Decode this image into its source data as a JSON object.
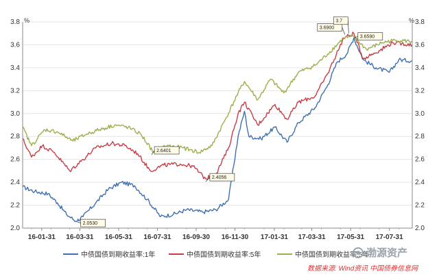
{
  "chart_data": {
    "type": "line",
    "unit_left": "%",
    "unit_right": "%",
    "ylim": [
      2.0,
      3.8
    ],
    "yticks": [
      "2.0",
      "2.2",
      "2.4",
      "2.6",
      "2.8",
      "3.0",
      "3.2",
      "3.4",
      "3.6",
      "3.8"
    ],
    "xticks": [
      "16-01-31",
      "16-03-31",
      "16-05-31",
      "16-07-31",
      "16-09-30",
      "16-11-30",
      "17-01-31",
      "17-03-31",
      "17-05-31",
      "17-07-31"
    ],
    "x_start": "2016-01-01",
    "x_end": "2017-09-05",
    "grid": true,
    "legend_position": "bottom",
    "series": [
      {
        "name": "中债国债到期收益率:1年",
        "color": "#3f6fb0",
        "points": [
          [
            "2016-01-01",
            2.36
          ],
          [
            "2016-01-20",
            2.32
          ],
          [
            "2016-02-10",
            2.3
          ],
          [
            "2016-02-25",
            2.22
          ],
          [
            "2016-03-10",
            2.12
          ],
          [
            "2016-03-25",
            2.06
          ],
          [
            "2016-04-05",
            2.1
          ],
          [
            "2016-04-25",
            2.22
          ],
          [
            "2016-05-15",
            2.34
          ],
          [
            "2016-06-05",
            2.4
          ],
          [
            "2016-06-25",
            2.37
          ],
          [
            "2016-07-15",
            2.25
          ],
          [
            "2016-08-05",
            2.1
          ],
          [
            "2016-08-25",
            2.12
          ],
          [
            "2016-09-15",
            2.16
          ],
          [
            "2016-10-10",
            2.14
          ],
          [
            "2016-10-31",
            2.16
          ],
          [
            "2016-11-20",
            2.25
          ],
          [
            "2016-12-05",
            2.8
          ],
          [
            "2016-12-15",
            3.02
          ],
          [
            "2016-12-22",
            2.8
          ],
          [
            "2017-01-10",
            2.78
          ],
          [
            "2017-02-01",
            2.88
          ],
          [
            "2017-02-20",
            2.75
          ],
          [
            "2017-03-10",
            2.92
          ],
          [
            "2017-04-05",
            3.05
          ],
          [
            "2017-04-25",
            3.25
          ],
          [
            "2017-05-10",
            3.45
          ],
          [
            "2017-05-25",
            3.52
          ],
          [
            "2017-06-05",
            3.66
          ],
          [
            "2017-06-20",
            3.47
          ],
          [
            "2017-07-10",
            3.4
          ],
          [
            "2017-07-31",
            3.36
          ],
          [
            "2017-08-15",
            3.47
          ],
          [
            "2017-09-05",
            3.46
          ]
        ]
      },
      {
        "name": "中债国债到期收益率:5年",
        "color": "#c83c46",
        "points": [
          [
            "2016-01-01",
            2.78
          ],
          [
            "2016-01-15",
            2.62
          ],
          [
            "2016-02-01",
            2.72
          ],
          [
            "2016-02-20",
            2.66
          ],
          [
            "2016-03-15",
            2.5
          ],
          [
            "2016-04-05",
            2.6
          ],
          [
            "2016-04-25",
            2.7
          ],
          [
            "2016-05-20",
            2.74
          ],
          [
            "2016-06-10",
            2.72
          ],
          [
            "2016-06-30",
            2.65
          ],
          [
            "2016-07-20",
            2.5
          ],
          [
            "2016-08-10",
            2.55
          ],
          [
            "2016-09-05",
            2.56
          ],
          [
            "2016-09-25",
            2.54
          ],
          [
            "2016-10-15",
            2.43
          ],
          [
            "2016-11-01",
            2.48
          ],
          [
            "2016-11-20",
            2.7
          ],
          [
            "2016-12-05",
            3.0
          ],
          [
            "2016-12-15",
            3.1
          ],
          [
            "2017-01-05",
            2.9
          ],
          [
            "2017-02-01",
            3.08
          ],
          [
            "2017-02-20",
            2.95
          ],
          [
            "2017-03-10",
            3.1
          ],
          [
            "2017-04-05",
            3.15
          ],
          [
            "2017-04-25",
            3.35
          ],
          [
            "2017-05-20",
            3.66
          ],
          [
            "2017-06-05",
            3.7
          ],
          [
            "2017-06-20",
            3.48
          ],
          [
            "2017-07-15",
            3.55
          ],
          [
            "2017-08-05",
            3.62
          ],
          [
            "2017-09-05",
            3.6
          ]
        ]
      },
      {
        "name": "中债国债到期收益率:5年",
        "color": "#9ab04a",
        "points": [
          [
            "2016-01-01",
            2.88
          ],
          [
            "2016-01-15",
            2.72
          ],
          [
            "2016-02-05",
            2.86
          ],
          [
            "2016-02-25",
            2.84
          ],
          [
            "2016-03-20",
            2.76
          ],
          [
            "2016-04-10",
            2.82
          ],
          [
            "2016-05-01",
            2.86
          ],
          [
            "2016-05-25",
            2.9
          ],
          [
            "2016-06-15",
            2.88
          ],
          [
            "2016-07-05",
            2.82
          ],
          [
            "2016-07-25",
            2.66
          ],
          [
            "2016-08-15",
            2.72
          ],
          [
            "2016-09-10",
            2.7
          ],
          [
            "2016-10-05",
            2.66
          ],
          [
            "2016-10-25",
            2.72
          ],
          [
            "2016-11-15",
            2.95
          ],
          [
            "2016-12-05",
            3.18
          ],
          [
            "2016-12-15",
            3.28
          ],
          [
            "2017-01-05",
            3.12
          ],
          [
            "2017-01-25",
            3.3
          ],
          [
            "2017-02-15",
            3.18
          ],
          [
            "2017-03-10",
            3.36
          ],
          [
            "2017-04-05",
            3.42
          ],
          [
            "2017-04-25",
            3.52
          ],
          [
            "2017-05-20",
            3.66
          ],
          [
            "2017-06-05",
            3.67
          ],
          [
            "2017-06-25",
            3.56
          ],
          [
            "2017-07-20",
            3.62
          ],
          [
            "2017-08-10",
            3.64
          ],
          [
            "2017-09-05",
            3.63
          ]
        ]
      }
    ],
    "annotations": [
      {
        "label": "2.0530",
        "date": "2016-03-28",
        "value": 2.053,
        "series": 0
      },
      {
        "label": "2.6401",
        "date": "2016-07-22",
        "value": 2.6401,
        "series": 2
      },
      {
        "label": "2.4056",
        "date": "2016-10-15",
        "value": 2.4056,
        "series": 1
      },
      {
        "label": "3.6900",
        "date": "2017-05-22",
        "value": 3.69,
        "series": 2
      },
      {
        "label": "3.6590",
        "date": "2017-06-05",
        "value": 3.659,
        "series": 0
      },
      {
        "label": "3.7",
        "date": "2017-05-28",
        "value": 3.7,
        "series": 1
      }
    ]
  },
  "legend": {
    "items": [
      {
        "label": "中债国债到期收益率:1年",
        "color": "#3f6fb0"
      },
      {
        "label": "中债国债到期收益率:5年",
        "color": "#c83c46"
      },
      {
        "label": "中债国债到期收益率:5年",
        "color": "#9ab04a"
      }
    ]
  },
  "watermark": {
    "text": "渤源资产"
  },
  "source": {
    "text": "数据来源: Wind资讯 中国债券信息网"
  }
}
